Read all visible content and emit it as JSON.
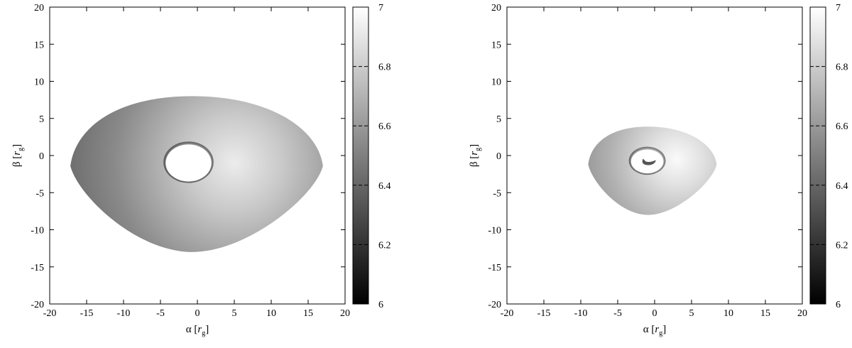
{
  "chart_data": [
    {
      "type": "heatmap",
      "title": "",
      "xlabel": "α [r_g]",
      "xlabel_symbol": "α",
      "ylabel": "β [r_g]",
      "ylabel_symbol": "β",
      "unit": "r",
      "unit_sub": "g",
      "xlim": [
        -20,
        20
      ],
      "ylim": [
        -20,
        20
      ],
      "x_ticks": [
        -20,
        -15,
        -10,
        -5,
        0,
        5,
        10,
        15,
        20
      ],
      "y_ticks": [
        -20,
        -15,
        -10,
        -5,
        0,
        5,
        10,
        15,
        20
      ],
      "colorbar": {
        "range": [
          6,
          7
        ],
        "ticks": [
          "6",
          "6.2",
          "6.4",
          "6.6",
          "6.8",
          "7"
        ],
        "colormap": "gray"
      },
      "disk": {
        "outer_extent": {
          "left": -17.2,
          "right": 17.0,
          "top": 8.0,
          "bottom": -13.0
        },
        "inner_hole": {
          "cx": -1.2,
          "cy": -1.0,
          "rx": 3.1,
          "ry": 2.5
        },
        "brightest_region": [
          5.0,
          -1.0
        ]
      }
    },
    {
      "type": "heatmap",
      "title": "",
      "xlabel": "α [r_g]",
      "xlabel_symbol": "α",
      "ylabel": "β [r_g]",
      "ylabel_symbol": "β",
      "unit": "r",
      "unit_sub": "g",
      "xlim": [
        -20,
        20
      ],
      "ylim": [
        -20,
        20
      ],
      "x_ticks": [
        -20,
        -15,
        -10,
        -5,
        0,
        5,
        10,
        15,
        20
      ],
      "y_ticks": [
        -20,
        -15,
        -10,
        -5,
        0,
        5,
        10,
        15,
        20
      ],
      "colorbar": {
        "range": [
          6,
          7
        ],
        "ticks": [
          "6",
          "6.2",
          "6.4",
          "6.6",
          "6.8",
          "7"
        ],
        "colormap": "gray"
      },
      "disk": {
        "outer_extent": {
          "left": -9.0,
          "right": 8.4,
          "top": 3.9,
          "bottom": -8.0
        },
        "inner_hole": {
          "cx": -1.0,
          "cy": -0.8,
          "rx": 2.2,
          "ry": 1.6
        },
        "brightest_region": [
          3.0,
          -0.5
        ]
      }
    }
  ]
}
